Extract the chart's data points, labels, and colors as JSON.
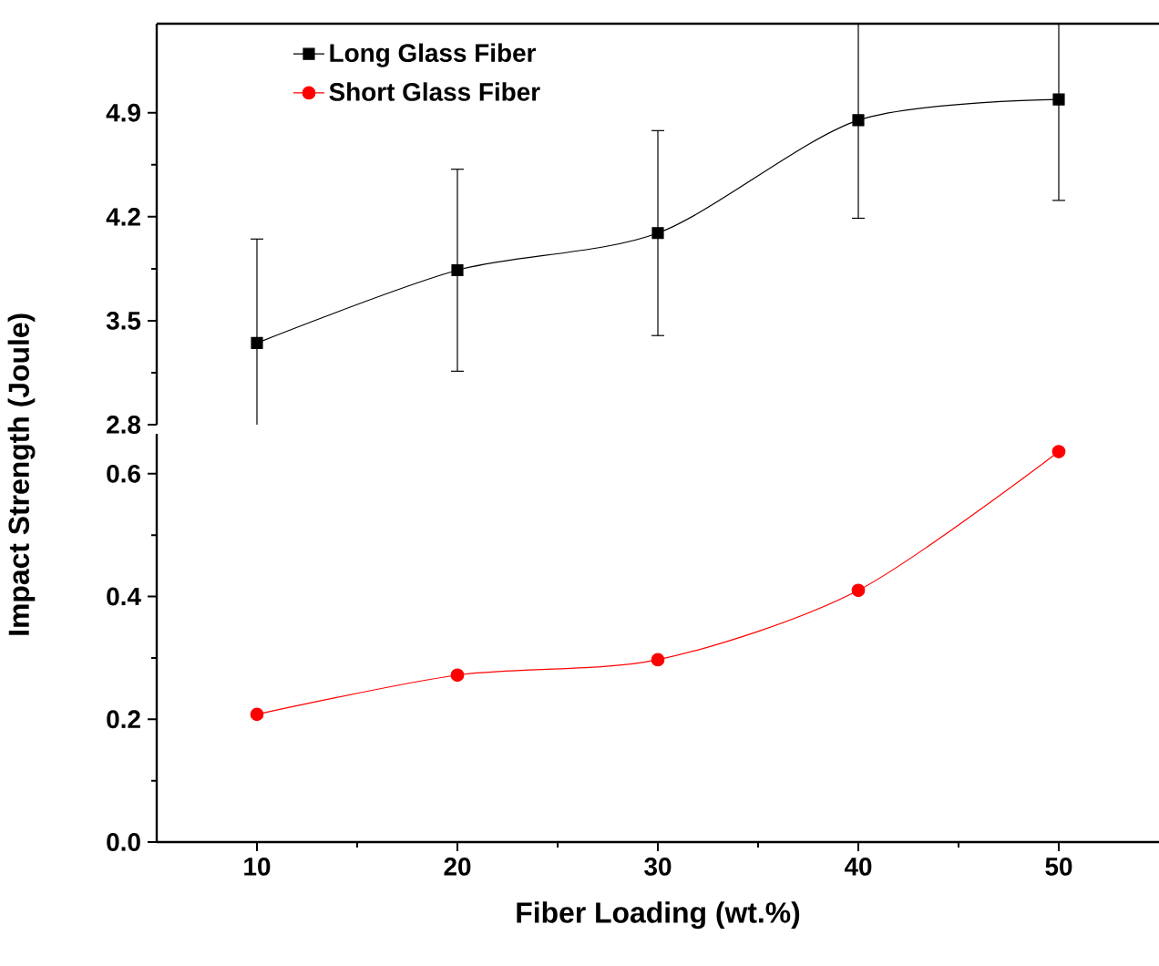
{
  "chart_data": [
    {
      "type": "line",
      "xlim": [
        5,
        55
      ],
      "ylim": [
        2.8,
        5.5
      ],
      "yticks": [
        2.8,
        3.5,
        4.2,
        4.9
      ],
      "tick_labels": "y",
      "marker": "square",
      "legend": "top left",
      "x": [
        10,
        20,
        30,
        40,
        50
      ],
      "series": [
        {
          "name": "Long Glass Fiber",
          "color": "#000000",
          "values": [
            3.35,
            3.84,
            4.09,
            4.85,
            4.99
          ],
          "errors": [
            0.7,
            0.68,
            0.69,
            0.66,
            0.68
          ]
        }
      ]
    },
    {
      "type": "line",
      "xlabel": "Fiber Loading (wt.%)",
      "ylabel": "Impact Strength (Joule)",
      "xlim": [
        5,
        55
      ],
      "xticks": [
        10,
        20,
        30,
        40,
        50
      ],
      "ylim": [
        0,
        0.665
      ],
      "yticks": [
        {
          "value": 0,
          "label": "0.0"
        },
        0.2,
        0.4,
        0.6
      ],
      "marker": "circle",
      "legend": "top left",
      "x": [
        10,
        20,
        30,
        40,
        50
      ],
      "series": [
        {
          "name": "Short Glass Fiber",
          "color": "#ff0000",
          "values": [
            0.208,
            0.272,
            0.297,
            0.41,
            0.636
          ]
        }
      ]
    }
  ]
}
